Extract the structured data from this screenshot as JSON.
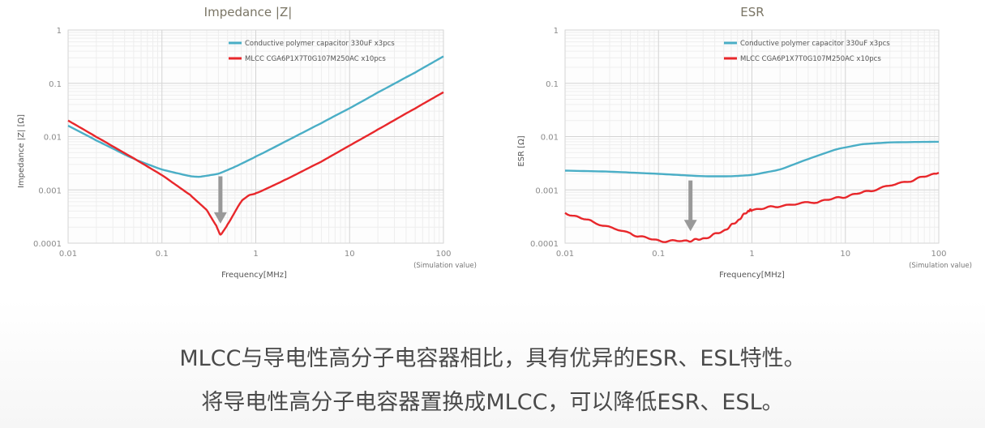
{
  "chart_data": [
    {
      "type": "line",
      "title": "Impedance |Z|",
      "xlabel": "Frequency[MHz]",
      "ylabel": "Impedance |Z| [Ω]",
      "xscale": "log",
      "yscale": "log",
      "xlim": [
        0.01,
        100
      ],
      "ylim": [
        0.0001,
        1
      ],
      "x_ticks": [
        "0.01",
        "0.1",
        "1",
        "10",
        "100"
      ],
      "y_ticks": [
        "1",
        "0.1",
        "0.01",
        "0.001",
        "0.0001"
      ],
      "grid": true,
      "legend_position": "upper right",
      "annotation": "(Simulation value)",
      "arrow": {
        "x": 0.42,
        "from_y": 0.0018,
        "to_y": 0.00025,
        "color": "#999999"
      },
      "series": [
        {
          "name": "Conductive polymer capacitor 330uF x3pcs",
          "color": "#4aaec6",
          "x": [
            0.01,
            0.02,
            0.05,
            0.1,
            0.2,
            0.25,
            0.4,
            0.6,
            1,
            2,
            5,
            10,
            20,
            50,
            100
          ],
          "values": [
            0.016,
            0.0085,
            0.0038,
            0.0024,
            0.0018,
            0.00175,
            0.002,
            0.0027,
            0.0042,
            0.0078,
            0.018,
            0.034,
            0.067,
            0.16,
            0.32
          ]
        },
        {
          "name": "MLCC CGA6P1X7T0G107M250AC x10pcs",
          "color": "#e8272b",
          "x": [
            0.01,
            0.02,
            0.05,
            0.1,
            0.2,
            0.3,
            0.38,
            0.42,
            0.5,
            0.7,
            0.85,
            1,
            2,
            5,
            10,
            20,
            50,
            100
          ],
          "values": [
            0.02,
            0.0099,
            0.0039,
            0.0019,
            0.0008,
            0.00042,
            0.00021,
            0.00014,
            0.00022,
            0.00062,
            0.0008,
            0.00085,
            0.0015,
            0.0034,
            0.0068,
            0.0135,
            0.034,
            0.068
          ]
        }
      ]
    },
    {
      "type": "line",
      "title": "ESR",
      "xlabel": "Frequency[MHz]",
      "ylabel": "ESR [Ω]",
      "xscale": "log",
      "yscale": "log",
      "xlim": [
        0.01,
        100
      ],
      "ylim": [
        0.0001,
        1
      ],
      "x_ticks": [
        "0.01",
        "0.1",
        "1",
        "10",
        "100"
      ],
      "y_ticks": [
        "1",
        "0.1",
        "0.01",
        "0.001",
        "0.0001"
      ],
      "grid": true,
      "legend_position": "upper right",
      "annotation": "(Simulation value)",
      "arrow": {
        "x": 0.22,
        "from_y": 0.0015,
        "to_y": 0.00018,
        "color": "#999999"
      },
      "series": [
        {
          "name": "Conductive polymer capacitor 330uF x3pcs",
          "color": "#4aaec6",
          "x": [
            0.01,
            0.03,
            0.1,
            0.3,
            0.6,
            1,
            2,
            4,
            8,
            15,
            30,
            100
          ],
          "values": [
            0.0023,
            0.0022,
            0.002,
            0.0018,
            0.0018,
            0.0019,
            0.0024,
            0.0038,
            0.0058,
            0.0072,
            0.0078,
            0.008
          ]
        },
        {
          "name": "MLCC CGA6P1X7T0G107M250AC x10pcs",
          "color": "#e8272b",
          "x": [
            0.01,
            0.02,
            0.05,
            0.1,
            0.2,
            0.3,
            0.5,
            0.7,
            0.9,
            1,
            2,
            5,
            10,
            20,
            50,
            100
          ],
          "values": [
            0.00037,
            0.00025,
            0.00015,
            0.00011,
            0.00011,
            0.00012,
            0.00017,
            0.00026,
            0.0004,
            0.00042,
            0.0005,
            0.0006,
            0.00075,
            0.001,
            0.0015,
            0.0021
          ]
        }
      ]
    }
  ],
  "captions": {
    "line1": "MLCC与导电性高分子电容器相比，具有优异的ESR、ESL特性。",
    "line2": "将导电性高分子电容器置换成MLCC，可以降低ESR、ESL。"
  }
}
